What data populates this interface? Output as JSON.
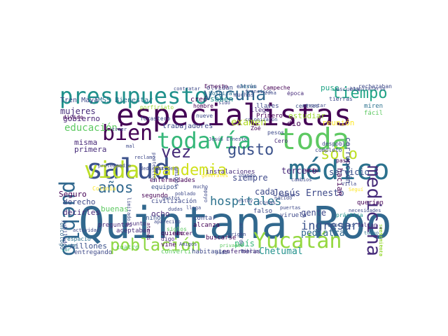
{
  "words": [
    {
      "text": "Quintana Roo",
      "color": "#31688e"
    },
    {
      "text": "especialistas",
      "color": "#440154"
    },
    {
      "text": "salud",
      "color": "#3b528b"
    },
    {
      "text": "médico",
      "color": "#2c728e"
    },
    {
      "text": "toda",
      "color": "#5ec962"
    },
    {
      "text": "presupuesto",
      "color": "#21918c"
    },
    {
      "text": "todavía",
      "color": "#35b779"
    },
    {
      "text": "vacuna",
      "color": "#31688e"
    },
    {
      "text": "pueblo",
      "color": "#31688e"
    },
    {
      "text": "medicina",
      "color": "#472c7a"
    },
    {
      "text": "vida",
      "color": "#bddf26"
    },
    {
      "text": "bien",
      "color": "#440154"
    },
    {
      "text": "Yucatán",
      "color": "#95d840"
    },
    {
      "text": "población",
      "color": "#8fd744"
    },
    {
      "text": "pandemia",
      "color": "#d0e11c"
    },
    {
      "text": "tiempo",
      "color": "#20a486"
    },
    {
      "text": "gusto",
      "color": "#3b528b"
    },
    {
      "text": "sólo",
      "color": "#bddf26"
    },
    {
      "text": "años",
      "color": "#31688e"
    },
    {
      "text": "vez",
      "color": "#472c7a"
    },
    {
      "text": "hospitales",
      "color": "#2c728e"
    },
    {
      "text": "ingresar",
      "color": "#3b528b"
    },
    {
      "text": "educación",
      "color": "#5ec962"
    },
    {
      "text": "trabajadores",
      "color": "#3e4989"
    },
    {
      "text": "examen",
      "color": "#b5de2b"
    },
    {
      "text": "corrupción",
      "color": "#3e4989"
    },
    {
      "text": "Jesús Ernesto",
      "color": "#3e4989"
    },
    {
      "text": "Chetumal",
      "color": "#21918c"
    },
    {
      "text": "pediatra",
      "color": "#31688e"
    },
    {
      "text": "mujeres",
      "color": "#472c7a"
    },
    {
      "text": "gobierno",
      "color": "#482173"
    },
    {
      "text": "Tren Maya",
      "color": "#3e4989"
    },
    {
      "text": "IMSS Bienestar",
      "color": "#2c728e"
    },
    {
      "text": "creó",
      "color": "#440154"
    },
    {
      "text": "misma",
      "color": "#482878"
    },
    {
      "text": "primera",
      "color": "#472c7a"
    },
    {
      "text": "derecho",
      "color": "#3e4989"
    },
    {
      "text": "decirles",
      "color": "#482878"
    },
    {
      "text": "millones",
      "color": "#3b528b"
    },
    {
      "text": "Seguro",
      "color": "#440154"
    },
    {
      "text": "buenas",
      "color": "#5ec962"
    },
    {
      "text": "país",
      "color": "#35b779"
    },
    {
      "text": "gente",
      "color": "#3e4989"
    },
    {
      "text": "servicio",
      "color": "#3b528b"
    },
    {
      "text": "tercero",
      "color": "#482878"
    },
    {
      "text": "cada",
      "color": "#3e4989"
    },
    {
      "text": "siempre",
      "color": "#3e4989"
    },
    {
      "text": "dio",
      "color": "#440154"
    },
    {
      "text": "reunión",
      "color": "#fde725"
    },
    {
      "text": "estudiar",
      "color": "#a0da39"
    },
    {
      "text": "puse",
      "color": "#20a486"
    },
    {
      "text": "saben",
      "color": "#21918c"
    },
    {
      "text": "hacían",
      "color": "#440154"
    },
    {
      "text": "olvidan",
      "color": "#3e4989"
    },
    {
      "text": "hospital",
      "color": "#2c728e"
    },
    {
      "text": "escuela",
      "color": "#3b528b"
    },
    {
      "text": "ocho",
      "color": "#482878"
    },
    {
      "text": "práctica",
      "color": "#21918c"
    },
    {
      "text": "empresas",
      "color": "#3b528b"
    },
    {
      "text": "faltan",
      "color": "#472c7a"
    },
    {
      "text": "aceptaban",
      "color": "#472c7a"
    },
    {
      "text": "quiero",
      "color": "#440154"
    },
    {
      "text": "buscarse",
      "color": "#440154"
    },
    {
      "text": "convertir",
      "color": "#5ec962"
    },
    {
      "text": "habitantes",
      "color": "#3e4989"
    },
    {
      "text": "enfermeras",
      "color": "#482878"
    },
    {
      "text": "entregando",
      "color": "#3e4989"
    },
    {
      "text": "cuatro",
      "color": "#5ec962"
    },
    {
      "text": "espacio",
      "color": "#2c728e"
    },
    {
      "text": "contar",
      "color": "#3e4989"
    },
    {
      "text": "alcanza",
      "color": "#440154"
    },
    {
      "text": "asunto",
      "color": "#472c7a"
    },
    {
      "text": "niños",
      "color": "#3b528b"
    },
    {
      "text": "preguntas",
      "color": "#482878"
    },
    {
      "text": "jubilados",
      "color": "#3e4989"
    },
    {
      "text": "norte",
      "color": "#2c728e"
    },
    {
      "text": "sur",
      "color": "#21918c"
    },
    {
      "text": "viruela",
      "color": "#3e4989"
    },
    {
      "text": "querían",
      "color": "#440154"
    },
    {
      "text": "turno",
      "color": "#2c728e"
    },
    {
      "text": "sentimiento",
      "color": "#95d840"
    },
    {
      "text": "escritura",
      "color": "#a0da39"
    },
    {
      "text": "zona",
      "color": "#3e4989"
    },
    {
      "text": "época",
      "color": "#472c7a"
    },
    {
      "text": "Campeche",
      "color": "#440154"
    },
    {
      "text": "rechazaban",
      "color": "#3e4989"
    },
    {
      "text": "miren",
      "color": "#2c728e"
    },
    {
      "text": "fácil",
      "color": "#5ec962"
    },
    {
      "text": "tierras",
      "color": "#3e4989"
    },
    {
      "text": "centros",
      "color": "#3b528b"
    },
    {
      "text": "acto",
      "color": "#440154"
    },
    {
      "text": "pasa",
      "color": "#440154"
    },
    {
      "text": "completo",
      "color": "#3e4989"
    },
    {
      "text": "despobló",
      "color": "#3e4989"
    },
    {
      "text": "instalaciones",
      "color": "#472c7a"
    },
    {
      "text": "enfermedades",
      "color": "#440154"
    },
    {
      "text": "equipos",
      "color": "#3b528b"
    },
    {
      "text": "segundo",
      "color": "#440154"
    },
    {
      "text": "civilización",
      "color": "#3e4989"
    },
    {
      "text": "hombre",
      "color": "#440154"
    },
    {
      "text": "nueve",
      "color": "#3e4989"
    },
    {
      "text": "muchas",
      "color": "#3e4989"
    },
    {
      "text": "entran",
      "color": "#3e4989"
    },
    {
      "text": "llaves",
      "color": "#3e4989"
    },
    {
      "text": "llegó",
      "color": "#472c7a"
    },
    {
      "text": "Primero",
      "color": "#440154"
    },
    {
      "text": "Zoé",
      "color": "#440154"
    },
    {
      "text": "pesos",
      "color": "#3e4989"
    },
    {
      "text": "Cero",
      "color": "#482878"
    },
    {
      "text": "cosas",
      "color": "#3e4989"
    },
    {
      "text": "falso",
      "color": "#3e4989"
    },
    {
      "text": "cáncer",
      "color": "#440154"
    },
    {
      "text": "vine",
      "color": "#440154"
    },
    {
      "text": "digo",
      "color": "#482878"
    },
    {
      "text": "siglos",
      "color": "#5ec962"
    },
    {
      "text": "poblado",
      "color": "#3e4989"
    },
    {
      "text": "Colonia",
      "color": "#fde725"
    },
    {
      "text": "porfiriato",
      "color": "#a0da39"
    },
    {
      "text": "forastero",
      "color": "#3e4989"
    },
    {
      "text": "Ernesto",
      "color": "#440154"
    },
    {
      "text": "Jesús",
      "color": "#2c728e"
    },
    {
      "text": "acuerdo",
      "color": "#3e4989"
    },
    {
      "text": "Biblia",
      "color": "#3e4989"
    },
    {
      "text": "privadas",
      "color": "#5ec962"
    },
    {
      "text": "oncólogo",
      "color": "#31688e"
    },
    {
      "text": "divide",
      "color": "#440154"
    },
    {
      "text": "actividad",
      "color": "#3e4989"
    },
    {
      "text": "reclamo",
      "color": "#3e4989"
    },
    {
      "text": "protección",
      "color": "#3e4989"
    },
    {
      "text": "hablar",
      "color": "#3e4989"
    },
    {
      "text": "Amigos",
      "color": "#3e4989"
    },
    {
      "text": "atendí",
      "color": "#440154"
    },
    {
      "text": "amigos",
      "color": "#3e4989"
    },
    {
      "text": "colonizaron",
      "color": "#3e4989"
    },
    {
      "text": "francisco",
      "color": "#3e4989"
    },
    {
      "text": "dando",
      "color": "#3e4989"
    },
    {
      "text": "respetar",
      "color": "#3e4989"
    },
    {
      "text": "hospitalario",
      "color": "#3e4989"
    },
    {
      "text": "Villa",
      "color": "#3e4989"
    },
    {
      "text": "Seguí",
      "color": "#fde725"
    },
    {
      "text": "necesidades",
      "color": "#3e4989"
    },
    {
      "text": "limitado",
      "color": "#3e4989"
    },
    {
      "text": "estoy",
      "color": "#3e4989"
    },
    {
      "text": "gustos",
      "color": "#3e4989"
    },
    {
      "text": "generales",
      "color": "#fde725"
    },
    {
      "text": "dedicaba",
      "color": "#3e4989"
    },
    {
      "text": "contratar",
      "color": "#3e4989"
    },
    {
      "text": "pudo",
      "color": "#3e4989"
    },
    {
      "text": "mal",
      "color": "#3e4989"
    },
    {
      "text": "proteger",
      "color": "#3e4989"
    },
    {
      "text": "aparecido",
      "color": "#3e4989"
    },
    {
      "text": "origen",
      "color": "#3e4989"
    },
    {
      "text": "ustedes",
      "color": "#3e4989"
    },
    {
      "text": "nacido",
      "color": "#3e4989"
    },
    {
      "text": "puertas",
      "color": "#3e4989"
    },
    {
      "text": "apoyo",
      "color": "#3e4989"
    },
    {
      "text": "sido",
      "color": "#3e4989"
    },
    {
      "text": "Jesús Ernesto",
      "color": "#3e4989"
    },
    {
      "text": "mucho",
      "color": "#3e4989"
    },
    {
      "text": "nadie",
      "color": "#3e4989"
    },
    {
      "text": "traer",
      "color": "#3e4989"
    },
    {
      "text": "cambios",
      "color": "#3e4989"
    },
    {
      "text": "dudas",
      "color": "#3e4989"
    },
    {
      "text": "llega",
      "color": "#3e4989"
    }
  ]
}
